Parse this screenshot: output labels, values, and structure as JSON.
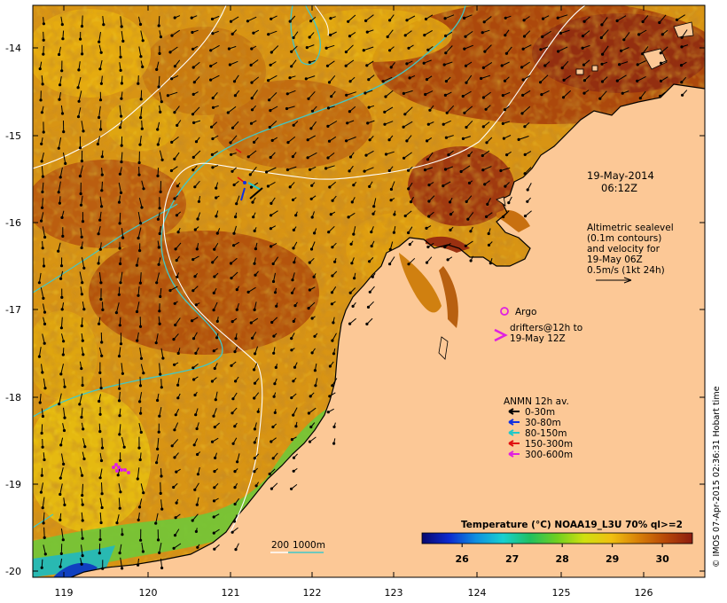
{
  "map": {
    "timestamp_line1": "19-May-2014",
    "timestamp_line2": "06:12Z",
    "altimetry_note": [
      "Altimetric sealevel",
      "(0.1m contours)",
      "and velocity for",
      "19-May 06Z",
      "0.5m/s (1kt 24h)"
    ],
    "argo_label": "Argo",
    "argo_color": "#e020e0",
    "drifters_label": [
      "drifters@12h to",
      "19-May 12Z"
    ],
    "anmn_title": "ANMN 12h av.",
    "anmn_legend": [
      {
        "label": "0-30m",
        "color": "#000000"
      },
      {
        "label": "30-80m",
        "color": "#1030e0"
      },
      {
        "label": "80-150m",
        "color": "#20c8c8"
      },
      {
        "label": "150-300m",
        "color": "#e01010"
      },
      {
        "label": "300-600m",
        "color": "#e020e0"
      }
    ],
    "depth_legend": {
      "label_200": "200",
      "label_1000": "1000m",
      "color_200": "#ffffff",
      "color_1000": "#40c8c8"
    },
    "lat_ticks": [
      "-14",
      "-15",
      "-16",
      "-17",
      "-18",
      "-19",
      "-20"
    ],
    "lon_ticks": [
      "119",
      "120",
      "121",
      "122",
      "123",
      "124",
      "125",
      "126"
    ],
    "colorbar": {
      "title": "Temperature (°C) NOAA19_L3U 70% ql>=2",
      "ticks": [
        "26",
        "27",
        "28",
        "29",
        "30"
      ],
      "range": [
        25.2,
        30.6
      ],
      "colors": [
        "#08086e",
        "#0c2ad0",
        "#1090e0",
        "#18d0d0",
        "#20c060",
        "#70d020",
        "#d0e010",
        "#f0c010",
        "#d88008",
        "#b84808",
        "#8c1c10"
      ]
    },
    "credit": "© IMOS 07-Apr-2015 02:36:31 Hobart time",
    "land_color": "#fcc896",
    "contour_color": "#ffffff",
    "depth1000_color": "#40c8c8"
  }
}
